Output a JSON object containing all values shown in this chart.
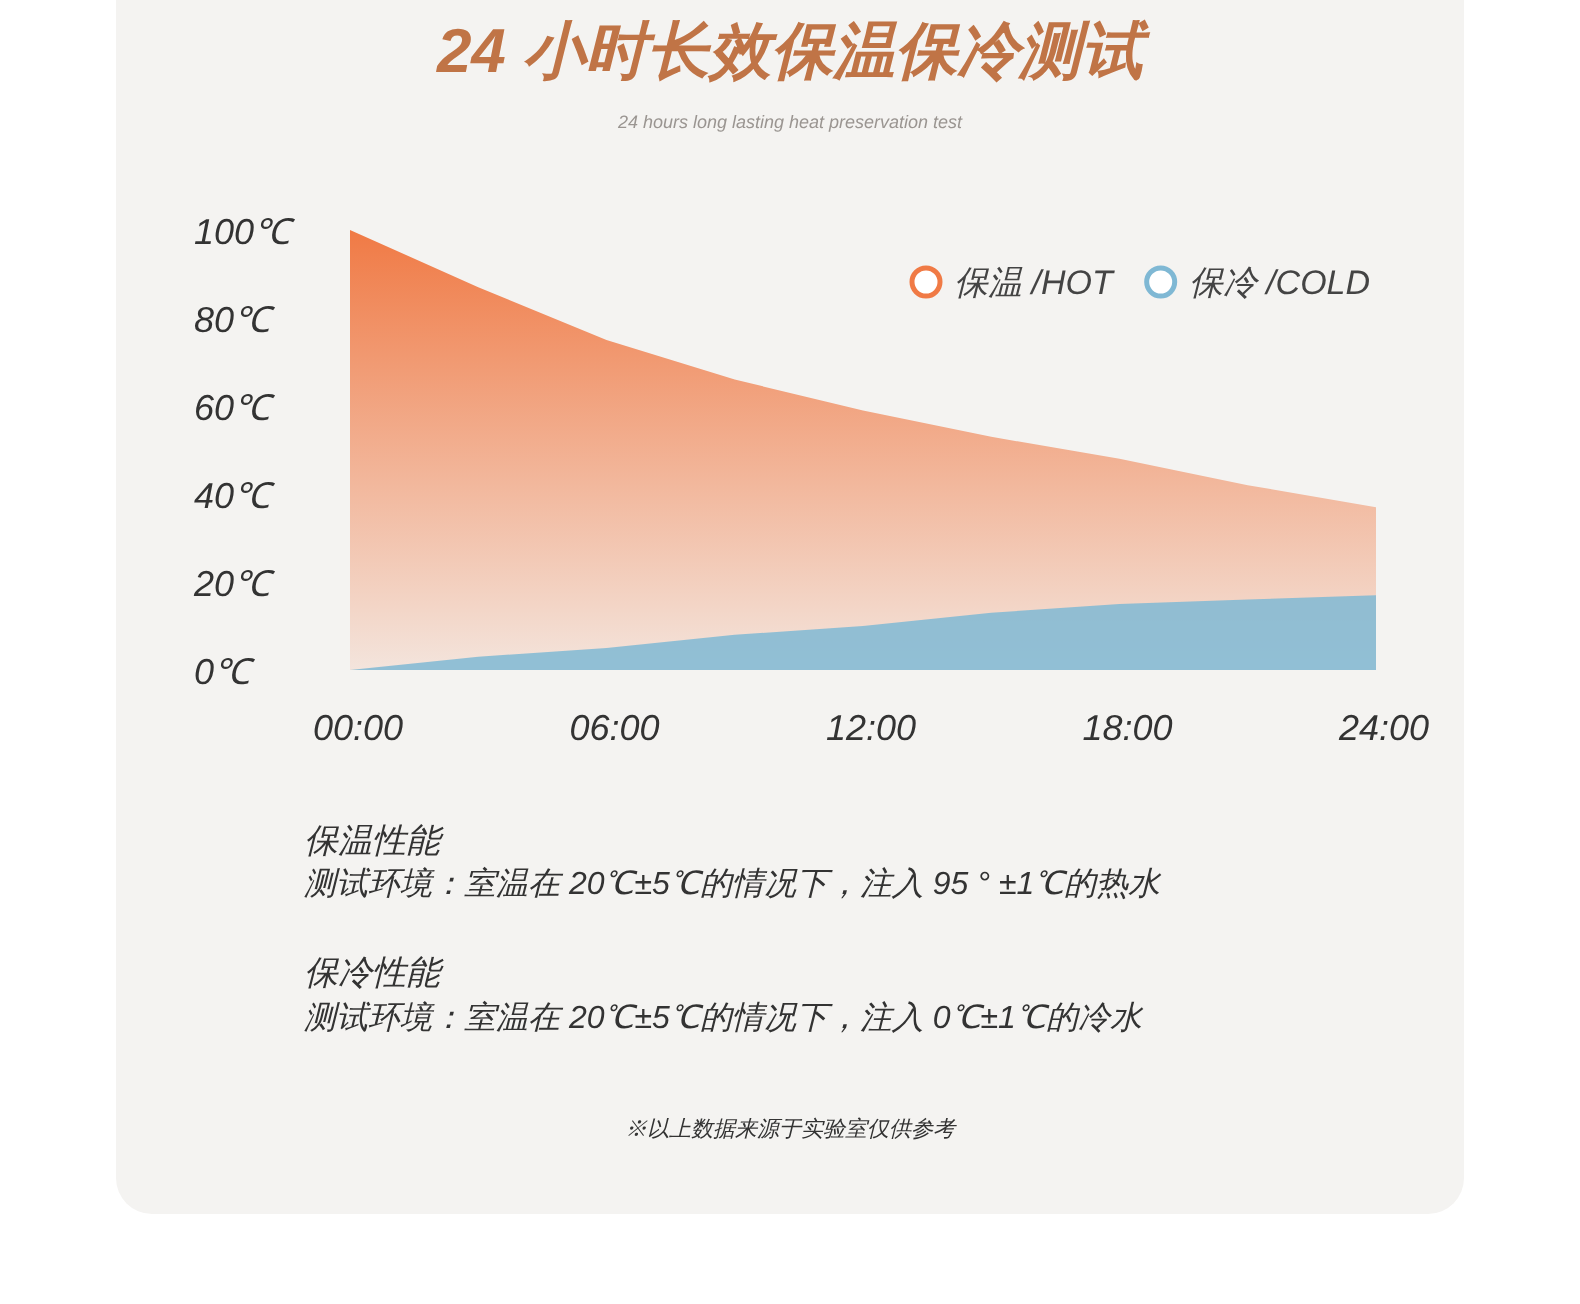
{
  "chart_data": {
    "type": "area",
    "title": "24 小时长效保温保冷测试",
    "subtitle": "24 hours long lasting heat preservation test",
    "x": [
      0,
      3,
      6,
      9,
      12,
      15,
      18,
      21,
      24
    ],
    "series": [
      {
        "name": "保温 /HOT",
        "color": "#f07a45",
        "values": [
          100,
          87,
          75,
          66,
          59,
          53,
          48,
          42,
          37
        ]
      },
      {
        "name": "保冷 /COLD",
        "color": "#7fb8d4",
        "values": [
          0,
          3,
          5,
          8,
          10,
          13,
          15,
          16,
          17
        ]
      }
    ],
    "xlim": [
      0,
      24
    ],
    "ylim": [
      0,
      100
    ],
    "xticks": [
      {
        "value": 0,
        "label": "00:00"
      },
      {
        "value": 6,
        "label": "06:00"
      },
      {
        "value": 12,
        "label": "12:00"
      },
      {
        "value": 18,
        "label": "18:00"
      },
      {
        "value": 24,
        "label": "24:00"
      }
    ],
    "yticks": [
      {
        "value": 0,
        "label": "0℃"
      },
      {
        "value": 20,
        "label": "20℃"
      },
      {
        "value": 40,
        "label": "40℃"
      },
      {
        "value": 60,
        "label": "60℃"
      },
      {
        "value": 80,
        "label": "80℃"
      },
      {
        "value": 100,
        "label": "100℃"
      }
    ],
    "grid": false,
    "legend": "top right",
    "annotations": [
      "保温性能",
      "测试环境：室温在 20℃±5℃的情况下，注入 95 ° ±1℃的热水",
      "保冷性能",
      "测试环境：室温在 20℃±5℃的情况下，注入 0℃±1℃的冷水",
      "※以上数据来源于实验室仅供参考"
    ]
  }
}
